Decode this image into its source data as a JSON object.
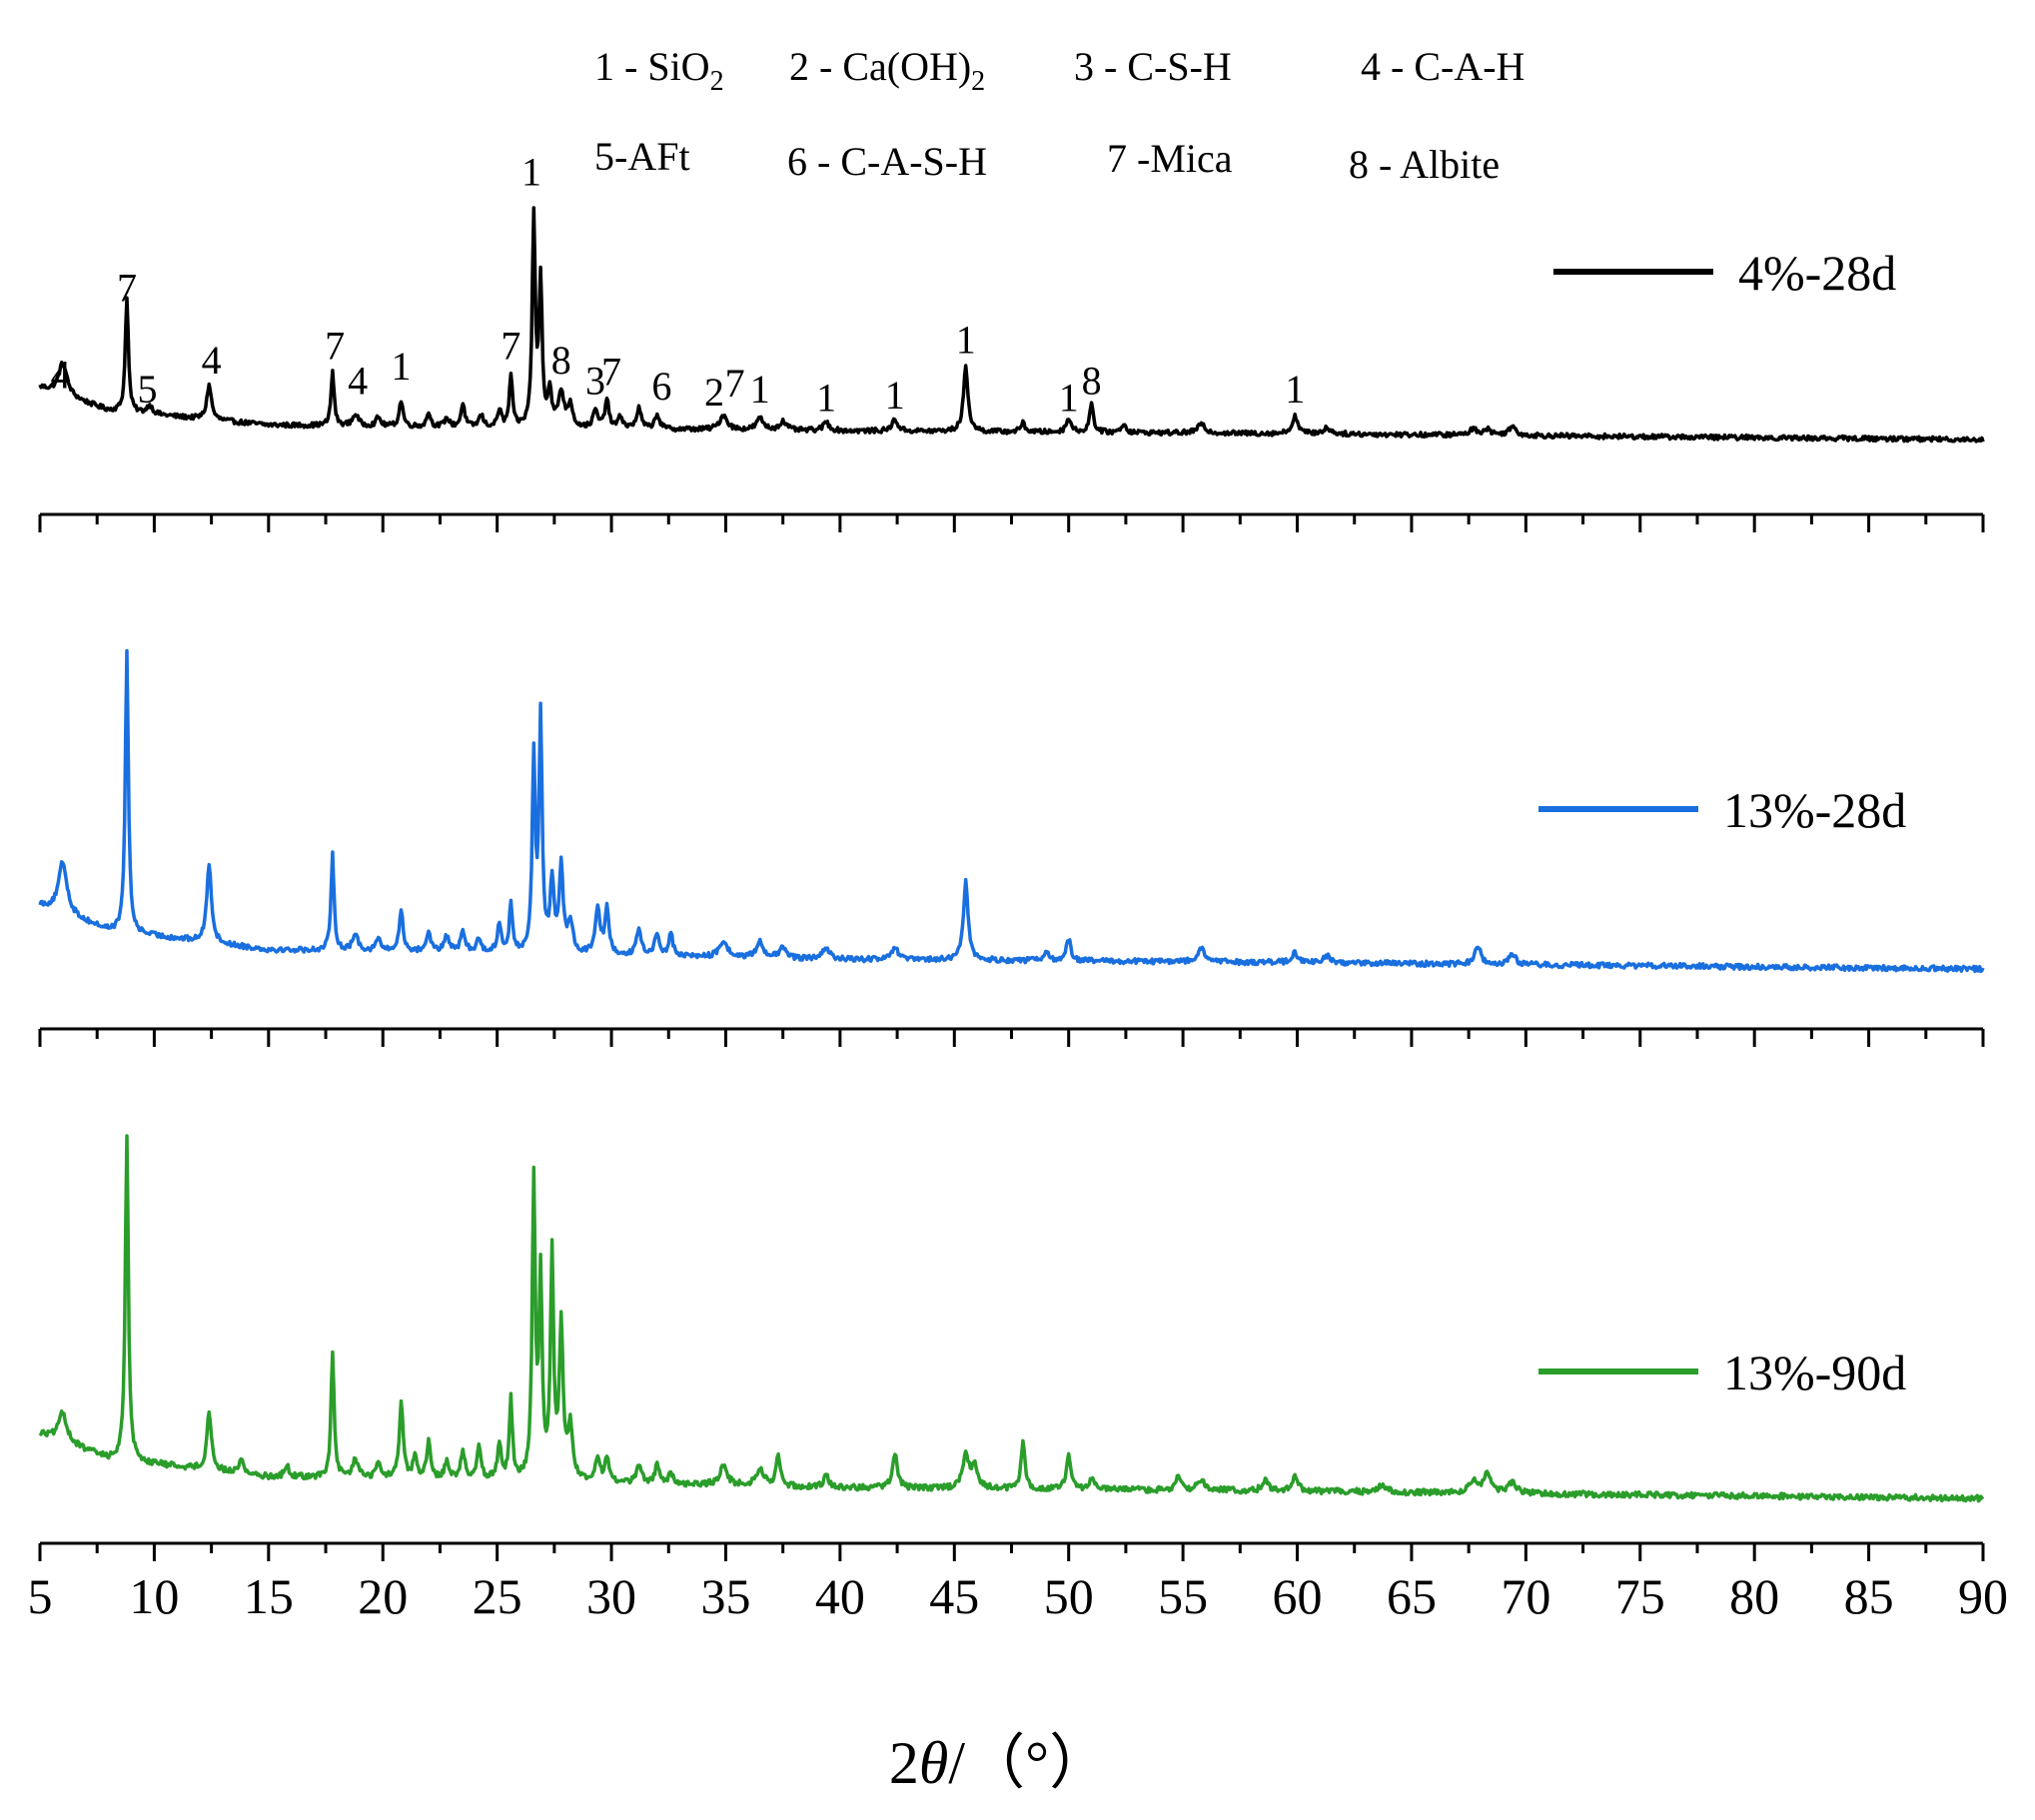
{
  "chart_data": {
    "type": "line",
    "title": "",
    "xlabel": "2θ/（°）",
    "xlabel_parts": {
      "symbol_num": "2",
      "symbol_var": "θ",
      "unit": "/（°）"
    },
    "ylabel": "",
    "xlim": [
      5,
      90
    ],
    "major_ticks": [
      5,
      10,
      15,
      20,
      25,
      30,
      35,
      40,
      45,
      50,
      55,
      60,
      65,
      70,
      75,
      80,
      85,
      90
    ],
    "tick_labels": [
      "5",
      "10",
      "15",
      "20",
      "25",
      "30",
      "35",
      "40",
      "45",
      "50",
      "55",
      "60",
      "65",
      "70",
      "75",
      "80",
      "85",
      "90"
    ],
    "phase_key": [
      {
        "num": "1",
        "name": "SiO",
        "sub": "2",
        "tail": ""
      },
      {
        "num": "2",
        "name": "Ca(OH)",
        "sub": "2",
        "tail": ""
      },
      {
        "num": "3",
        "name": "C-S-H",
        "sub": "",
        "tail": ""
      },
      {
        "num": "4",
        "name": "C-A-H",
        "sub": "",
        "tail": ""
      },
      {
        "num": "5",
        "name": "AFt",
        "sub": "",
        "tail": ""
      },
      {
        "num": "6",
        "name": "C-A-S-H",
        "sub": "",
        "tail": ""
      },
      {
        "num": "7",
        "name": "Mica",
        "sub": "",
        "tail": ""
      },
      {
        "num": "8",
        "name": "Albite",
        "sub": "",
        "tail": ""
      }
    ],
    "phase_key_text": [
      "1 - SiO",
      "2",
      "2 - Ca(OH)",
      "2",
      "3 - C-S-H",
      "4 - C-A-H",
      "5-AFt",
      "6 - C-A-S-H",
      "7 -Mica",
      "8 - Albite"
    ],
    "series": [
      {
        "name": "4%-28d",
        "color": "#000000",
        "baseline": [
          [
            5,
            0.18
          ],
          [
            8,
            0.1
          ],
          [
            15,
            0.05
          ],
          [
            25,
            0.04
          ],
          [
            40,
            0.03
          ],
          [
            60,
            0.02
          ],
          [
            90,
            0.0
          ]
        ],
        "peaks": [
          [
            6.0,
            0.11,
            0.22
          ],
          [
            8.8,
            0.4,
            0.08
          ],
          [
            9.8,
            0.03,
            0.15
          ],
          [
            12.4,
            0.12,
            0.12
          ],
          [
            17.8,
            0.19,
            0.08
          ],
          [
            18.8,
            0.04,
            0.15
          ],
          [
            19.8,
            0.03,
            0.12
          ],
          [
            20.8,
            0.09,
            0.1
          ],
          [
            22.0,
            0.05,
            0.1
          ],
          [
            22.8,
            0.03,
            0.12
          ],
          [
            23.5,
            0.08,
            0.1
          ],
          [
            24.3,
            0.04,
            0.12
          ],
          [
            25.1,
            0.06,
            0.1
          ],
          [
            25.6,
            0.18,
            0.08
          ],
          [
            26.6,
            0.72,
            0.08
          ],
          [
            26.9,
            0.5,
            0.08
          ],
          [
            27.3,
            0.12,
            0.1
          ],
          [
            27.8,
            0.12,
            0.15
          ],
          [
            28.2,
            0.08,
            0.12
          ],
          [
            29.3,
            0.06,
            0.12
          ],
          [
            29.8,
            0.1,
            0.1
          ],
          [
            30.4,
            0.04,
            0.12
          ],
          [
            31.2,
            0.07,
            0.12
          ],
          [
            32.0,
            0.05,
            0.12
          ],
          [
            34.9,
            0.05,
            0.2
          ],
          [
            36.5,
            0.04,
            0.18
          ],
          [
            37.5,
            0.03,
            0.18
          ],
          [
            39.4,
            0.03,
            0.15
          ],
          [
            42.4,
            0.04,
            0.15
          ],
          [
            45.5,
            0.22,
            0.12
          ],
          [
            48.0,
            0.03,
            0.12
          ],
          [
            50.0,
            0.05,
            0.12
          ],
          [
            51.0,
            0.1,
            0.1
          ],
          [
            52.4,
            0.03,
            0.12
          ],
          [
            55.8,
            0.03,
            0.2
          ],
          [
            59.9,
            0.06,
            0.15
          ],
          [
            61.3,
            0.02,
            0.2
          ],
          [
            67.7,
            0.02,
            0.2
          ],
          [
            68.3,
            0.02,
            0.2
          ],
          [
            69.4,
            0.03,
            0.2
          ]
        ],
        "noise": 0.008,
        "peak_markers": [
          {
            "label": "4",
            "x": 5.9,
            "h": 0.15
          },
          {
            "label": "7",
            "x": 8.8,
            "h": 0.45
          },
          {
            "label": "5",
            "x": 9.7,
            "h": 0.1
          },
          {
            "label": "4",
            "x": 12.5,
            "h": 0.2
          },
          {
            "label": "7",
            "x": 17.9,
            "h": 0.25
          },
          {
            "label": "4",
            "x": 18.9,
            "h": 0.13
          },
          {
            "label": "1",
            "x": 20.8,
            "h": 0.18
          },
          {
            "label": "7",
            "x": 25.6,
            "h": 0.25
          },
          {
            "label": "1",
            "x": 26.5,
            "h": 0.85
          },
          {
            "label": "8",
            "x": 27.8,
            "h": 0.2
          },
          {
            "label": "3",
            "x": 29.3,
            "h": 0.13
          },
          {
            "label": "7",
            "x": 30.0,
            "h": 0.16
          },
          {
            "label": "6",
            "x": 32.2,
            "h": 0.11
          },
          {
            "label": "2",
            "x": 34.5,
            "h": 0.09
          },
          {
            "label": "7",
            "x": 35.4,
            "h": 0.12
          },
          {
            "label": "1",
            "x": 36.5,
            "h": 0.1
          },
          {
            "label": "1",
            "x": 39.4,
            "h": 0.07
          },
          {
            "label": "1",
            "x": 42.4,
            "h": 0.08
          },
          {
            "label": "1",
            "x": 45.5,
            "h": 0.27
          },
          {
            "label": "1",
            "x": 50.0,
            "h": 0.07
          },
          {
            "label": "8",
            "x": 51.0,
            "h": 0.13
          },
          {
            "label": "1",
            "x": 59.9,
            "h": 0.1
          }
        ]
      },
      {
        "name": "13%-28d",
        "color": "#1a6fdf",
        "baseline": [
          [
            5,
            0.2
          ],
          [
            8,
            0.12
          ],
          [
            15,
            0.06
          ],
          [
            25,
            0.05
          ],
          [
            40,
            0.03
          ],
          [
            60,
            0.02
          ],
          [
            90,
            0.0
          ]
        ],
        "peaks": [
          [
            6.0,
            0.16,
            0.22
          ],
          [
            8.8,
            0.88,
            0.08
          ],
          [
            12.4,
            0.25,
            0.12
          ],
          [
            17.8,
            0.3,
            0.08
          ],
          [
            18.8,
            0.05,
            0.15
          ],
          [
            19.8,
            0.04,
            0.12
          ],
          [
            20.8,
            0.13,
            0.1
          ],
          [
            22.0,
            0.06,
            0.12
          ],
          [
            22.8,
            0.05,
            0.12
          ],
          [
            23.5,
            0.06,
            0.12
          ],
          [
            24.2,
            0.04,
            0.12
          ],
          [
            25.1,
            0.09,
            0.1
          ],
          [
            25.6,
            0.15,
            0.08
          ],
          [
            26.6,
            0.6,
            0.08
          ],
          [
            26.9,
            0.73,
            0.08
          ],
          [
            27.4,
            0.22,
            0.1
          ],
          [
            27.8,
            0.27,
            0.1
          ],
          [
            28.2,
            0.1,
            0.12
          ],
          [
            29.4,
            0.14,
            0.12
          ],
          [
            29.8,
            0.15,
            0.1
          ],
          [
            31.2,
            0.08,
            0.12
          ],
          [
            32.0,
            0.07,
            0.12
          ],
          [
            32.6,
            0.07,
            0.1
          ],
          [
            34.9,
            0.05,
            0.2
          ],
          [
            36.5,
            0.05,
            0.18
          ],
          [
            37.5,
            0.03,
            0.18
          ],
          [
            39.4,
            0.04,
            0.15
          ],
          [
            42.4,
            0.04,
            0.15
          ],
          [
            45.5,
            0.25,
            0.12
          ],
          [
            49.0,
            0.03,
            0.12
          ],
          [
            50.0,
            0.07,
            0.12
          ],
          [
            55.8,
            0.04,
            0.2
          ],
          [
            59.9,
            0.03,
            0.15
          ],
          [
            61.3,
            0.02,
            0.2
          ],
          [
            67.9,
            0.06,
            0.15
          ],
          [
            69.4,
            0.03,
            0.2
          ]
        ],
        "noise": 0.008,
        "peak_markers": []
      },
      {
        "name": "13%-90d",
        "color": "#2a9d2a",
        "baseline": [
          [
            5,
            0.18
          ],
          [
            8,
            0.11
          ],
          [
            15,
            0.06
          ],
          [
            25,
            0.05
          ],
          [
            40,
            0.03
          ],
          [
            60,
            0.02
          ],
          [
            90,
            0.0
          ]
        ],
        "peaks": [
          [
            6.0,
            0.08,
            0.22
          ],
          [
            8.8,
            0.91,
            0.08
          ],
          [
            12.4,
            0.16,
            0.12
          ],
          [
            13.8,
            0.04,
            0.12
          ],
          [
            15.8,
            0.03,
            0.12
          ],
          [
            17.8,
            0.35,
            0.08
          ],
          [
            18.8,
            0.05,
            0.15
          ],
          [
            19.8,
            0.04,
            0.12
          ],
          [
            20.8,
            0.21,
            0.1
          ],
          [
            21.4,
            0.06,
            0.1
          ],
          [
            22.0,
            0.1,
            0.1
          ],
          [
            22.8,
            0.05,
            0.12
          ],
          [
            23.5,
            0.08,
            0.1
          ],
          [
            24.2,
            0.1,
            0.1
          ],
          [
            25.1,
            0.1,
            0.1
          ],
          [
            25.6,
            0.22,
            0.08
          ],
          [
            26.6,
            0.82,
            0.08
          ],
          [
            26.9,
            0.55,
            0.08
          ],
          [
            27.4,
            0.62,
            0.08
          ],
          [
            27.8,
            0.42,
            0.1
          ],
          [
            28.2,
            0.15,
            0.12
          ],
          [
            29.4,
            0.06,
            0.12
          ],
          [
            29.8,
            0.07,
            0.1
          ],
          [
            31.2,
            0.05,
            0.12
          ],
          [
            32.0,
            0.05,
            0.12
          ],
          [
            32.6,
            0.03,
            0.1
          ],
          [
            34.9,
            0.05,
            0.2
          ],
          [
            36.5,
            0.05,
            0.18
          ],
          [
            37.3,
            0.09,
            0.1
          ],
          [
            39.4,
            0.03,
            0.15
          ],
          [
            42.4,
            0.1,
            0.12
          ],
          [
            45.5,
            0.1,
            0.15
          ],
          [
            45.9,
            0.06,
            0.15
          ],
          [
            48.0,
            0.13,
            0.1
          ],
          [
            50.0,
            0.09,
            0.12
          ],
          [
            51.0,
            0.03,
            0.12
          ],
          [
            54.8,
            0.04,
            0.12
          ],
          [
            55.8,
            0.03,
            0.2
          ],
          [
            58.6,
            0.03,
            0.15
          ],
          [
            59.9,
            0.04,
            0.15
          ],
          [
            63.7,
            0.02,
            0.2
          ],
          [
            67.7,
            0.03,
            0.2
          ],
          [
            68.3,
            0.05,
            0.2
          ],
          [
            69.4,
            0.03,
            0.2
          ]
        ],
        "noise": 0.008,
        "peak_markers": []
      }
    ]
  }
}
